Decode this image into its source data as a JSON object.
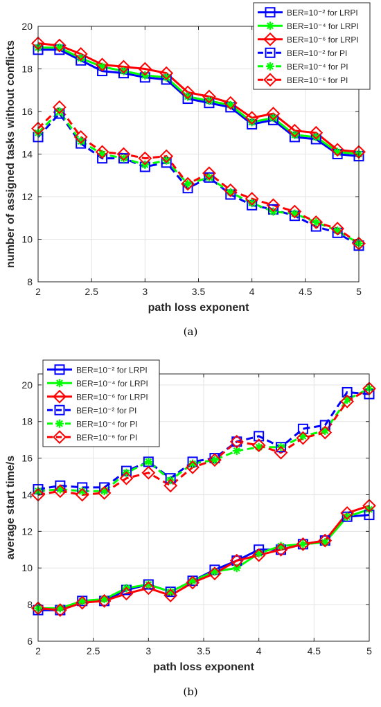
{
  "captions": {
    "a": "(a)",
    "b": "(b)"
  },
  "colors": {
    "s1": "#0000ff",
    "s2": "#00ff00",
    "s3": "#ff0000"
  },
  "chart_data": [
    {
      "type": "line",
      "xlabel": "path loss exponent",
      "ylabel": "number of assigned tasks without conflicts",
      "xlim": [
        2,
        5
      ],
      "ylim": [
        8,
        20
      ],
      "xticks": [
        2,
        2.5,
        3,
        3.5,
        4,
        4.5,
        5
      ],
      "xticklabels": [
        "2",
        "2.5",
        "3",
        "3.5",
        "4",
        "4.5",
        "5"
      ],
      "yticks": [
        8,
        10,
        12,
        14,
        16,
        18,
        20
      ],
      "yticklabels": [
        "8",
        "10",
        "12",
        "14",
        "16",
        "18",
        "20"
      ],
      "grid": true,
      "legend_position": "top-right",
      "x": [
        2,
        2.2,
        2.4,
        2.6,
        2.8,
        3,
        3.2,
        3.4,
        3.6,
        3.8,
        4,
        4.2,
        4.4,
        4.6,
        4.8,
        5
      ],
      "series": [
        {
          "name": "BER=10⁻² for LRPI",
          "color": "#0000ff",
          "marker": "square",
          "dash": "solid",
          "values": [
            18.9,
            18.9,
            18.4,
            17.9,
            17.8,
            17.6,
            17.5,
            16.6,
            16.4,
            16.2,
            15.4,
            15.6,
            14.8,
            14.7,
            14.0,
            13.9
          ]
        },
        {
          "name": "BER=10⁻⁴ for LRPI",
          "color": "#00ff00",
          "marker": "star",
          "dash": "solid",
          "values": [
            19.0,
            19.0,
            18.5,
            18.1,
            17.9,
            17.7,
            17.6,
            16.7,
            16.5,
            16.3,
            15.5,
            15.7,
            14.9,
            14.8,
            14.1,
            14.0
          ]
        },
        {
          "name": "BER=10⁻⁶ for LRPI",
          "color": "#ff0000",
          "marker": "diamond",
          "dash": "solid",
          "values": [
            19.2,
            19.1,
            18.7,
            18.2,
            18.1,
            18.0,
            17.8,
            16.9,
            16.7,
            16.4,
            15.7,
            15.9,
            15.1,
            15.0,
            14.2,
            14.1
          ]
        },
        {
          "name": "BER=10⁻² for PI",
          "color": "#0000ff",
          "marker": "square",
          "dash": "dashed",
          "values": [
            14.8,
            15.9,
            14.5,
            13.8,
            13.8,
            13.4,
            13.6,
            12.4,
            12.9,
            12.1,
            11.6,
            11.4,
            11.1,
            10.6,
            10.3,
            9.7
          ]
        },
        {
          "name": "BER=10⁻⁴ for PI",
          "color": "#00ff00",
          "marker": "star",
          "dash": "dashed",
          "values": [
            15.0,
            16.0,
            14.6,
            14.0,
            13.8,
            13.5,
            13.7,
            12.6,
            12.9,
            12.2,
            11.7,
            11.3,
            11.2,
            10.8,
            10.4,
            9.8
          ]
        },
        {
          "name": "BER=10⁻⁶ for PI",
          "color": "#ff0000",
          "marker": "diamond",
          "dash": "dashed",
          "values": [
            15.2,
            16.2,
            14.8,
            14.1,
            14.0,
            13.8,
            13.9,
            12.6,
            13.1,
            12.3,
            11.9,
            11.6,
            11.3,
            10.8,
            10.5,
            9.8
          ]
        }
      ]
    },
    {
      "type": "line",
      "xlabel": "path loss exponent",
      "ylabel": "average start time/s",
      "xlim": [
        2,
        5
      ],
      "ylim": [
        6,
        20.6
      ],
      "xticks": [
        2,
        2.5,
        3,
        3.5,
        4,
        4.5,
        5
      ],
      "xticklabels": [
        "2",
        "2.5",
        "3",
        "3.5",
        "4",
        "4.5",
        "5"
      ],
      "yticks": [
        6,
        8,
        10,
        12,
        14,
        16,
        18,
        20
      ],
      "yticklabels": [
        "6",
        "8",
        "10",
        "12",
        "14",
        "16",
        "18",
        "20"
      ],
      "grid": true,
      "legend_position": "top-left",
      "x": [
        2,
        2.2,
        2.4,
        2.6,
        2.8,
        3,
        3.2,
        3.4,
        3.6,
        3.8,
        4,
        4.2,
        4.4,
        4.6,
        4.8,
        5
      ],
      "series": [
        {
          "name": "BER=10⁻² for LRPI",
          "color": "#0000ff",
          "marker": "square",
          "dash": "solid",
          "values": [
            7.7,
            7.7,
            8.2,
            8.2,
            8.8,
            9.1,
            8.7,
            9.3,
            9.9,
            10.4,
            11.0,
            11.0,
            11.3,
            11.5,
            12.8,
            12.9
          ]
        },
        {
          "name": "BER=10⁻⁴ for LRPI",
          "color": "#00ff00",
          "marker": "star",
          "dash": "solid",
          "values": [
            7.8,
            7.8,
            8.2,
            8.3,
            8.9,
            9.1,
            8.7,
            9.3,
            9.8,
            10.0,
            10.8,
            11.2,
            11.3,
            11.4,
            12.8,
            13.2
          ]
        },
        {
          "name": "BER=10⁻⁶ for LRPI",
          "color": "#ff0000",
          "marker": "diamond",
          "dash": "solid",
          "values": [
            7.8,
            7.7,
            8.1,
            8.2,
            8.6,
            8.9,
            8.5,
            9.2,
            9.7,
            10.4,
            10.7,
            11.0,
            11.3,
            11.5,
            13.0,
            13.4
          ]
        },
        {
          "name": "BER=10⁻² for PI",
          "color": "#0000ff",
          "marker": "square",
          "dash": "dashed",
          "values": [
            14.3,
            14.5,
            14.4,
            14.4,
            15.3,
            15.8,
            14.9,
            15.8,
            16.0,
            16.9,
            17.2,
            16.6,
            17.6,
            17.8,
            19.6,
            19.5
          ]
        },
        {
          "name": "BER=10⁻⁴ for PI",
          "color": "#00ff00",
          "marker": "star",
          "dash": "dashed",
          "values": [
            14.2,
            14.3,
            14.2,
            14.2,
            15.2,
            15.8,
            14.8,
            15.7,
            15.9,
            16.4,
            16.6,
            16.6,
            17.2,
            17.5,
            19.2,
            19.8
          ]
        },
        {
          "name": "BER=10⁻⁶ for PI",
          "color": "#ff0000",
          "marker": "diamond",
          "dash": "dashed",
          "values": [
            14.0,
            14.2,
            14.0,
            14.1,
            14.9,
            15.2,
            14.5,
            15.5,
            15.9,
            16.9,
            16.7,
            16.3,
            17.1,
            17.4,
            19.1,
            19.8
          ]
        }
      ]
    }
  ]
}
